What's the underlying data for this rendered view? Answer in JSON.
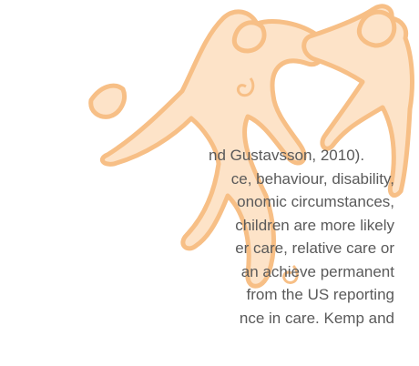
{
  "paragraph": {
    "lines": [
      "nd Gustavsson, 2010).",
      "ce, behaviour, disability,",
      "onomic circumstances,",
      "children are more likely",
      "er care, relative care or",
      "an achieve permanent",
      "from the US reporting",
      "nce in care. Kemp and"
    ]
  }
}
